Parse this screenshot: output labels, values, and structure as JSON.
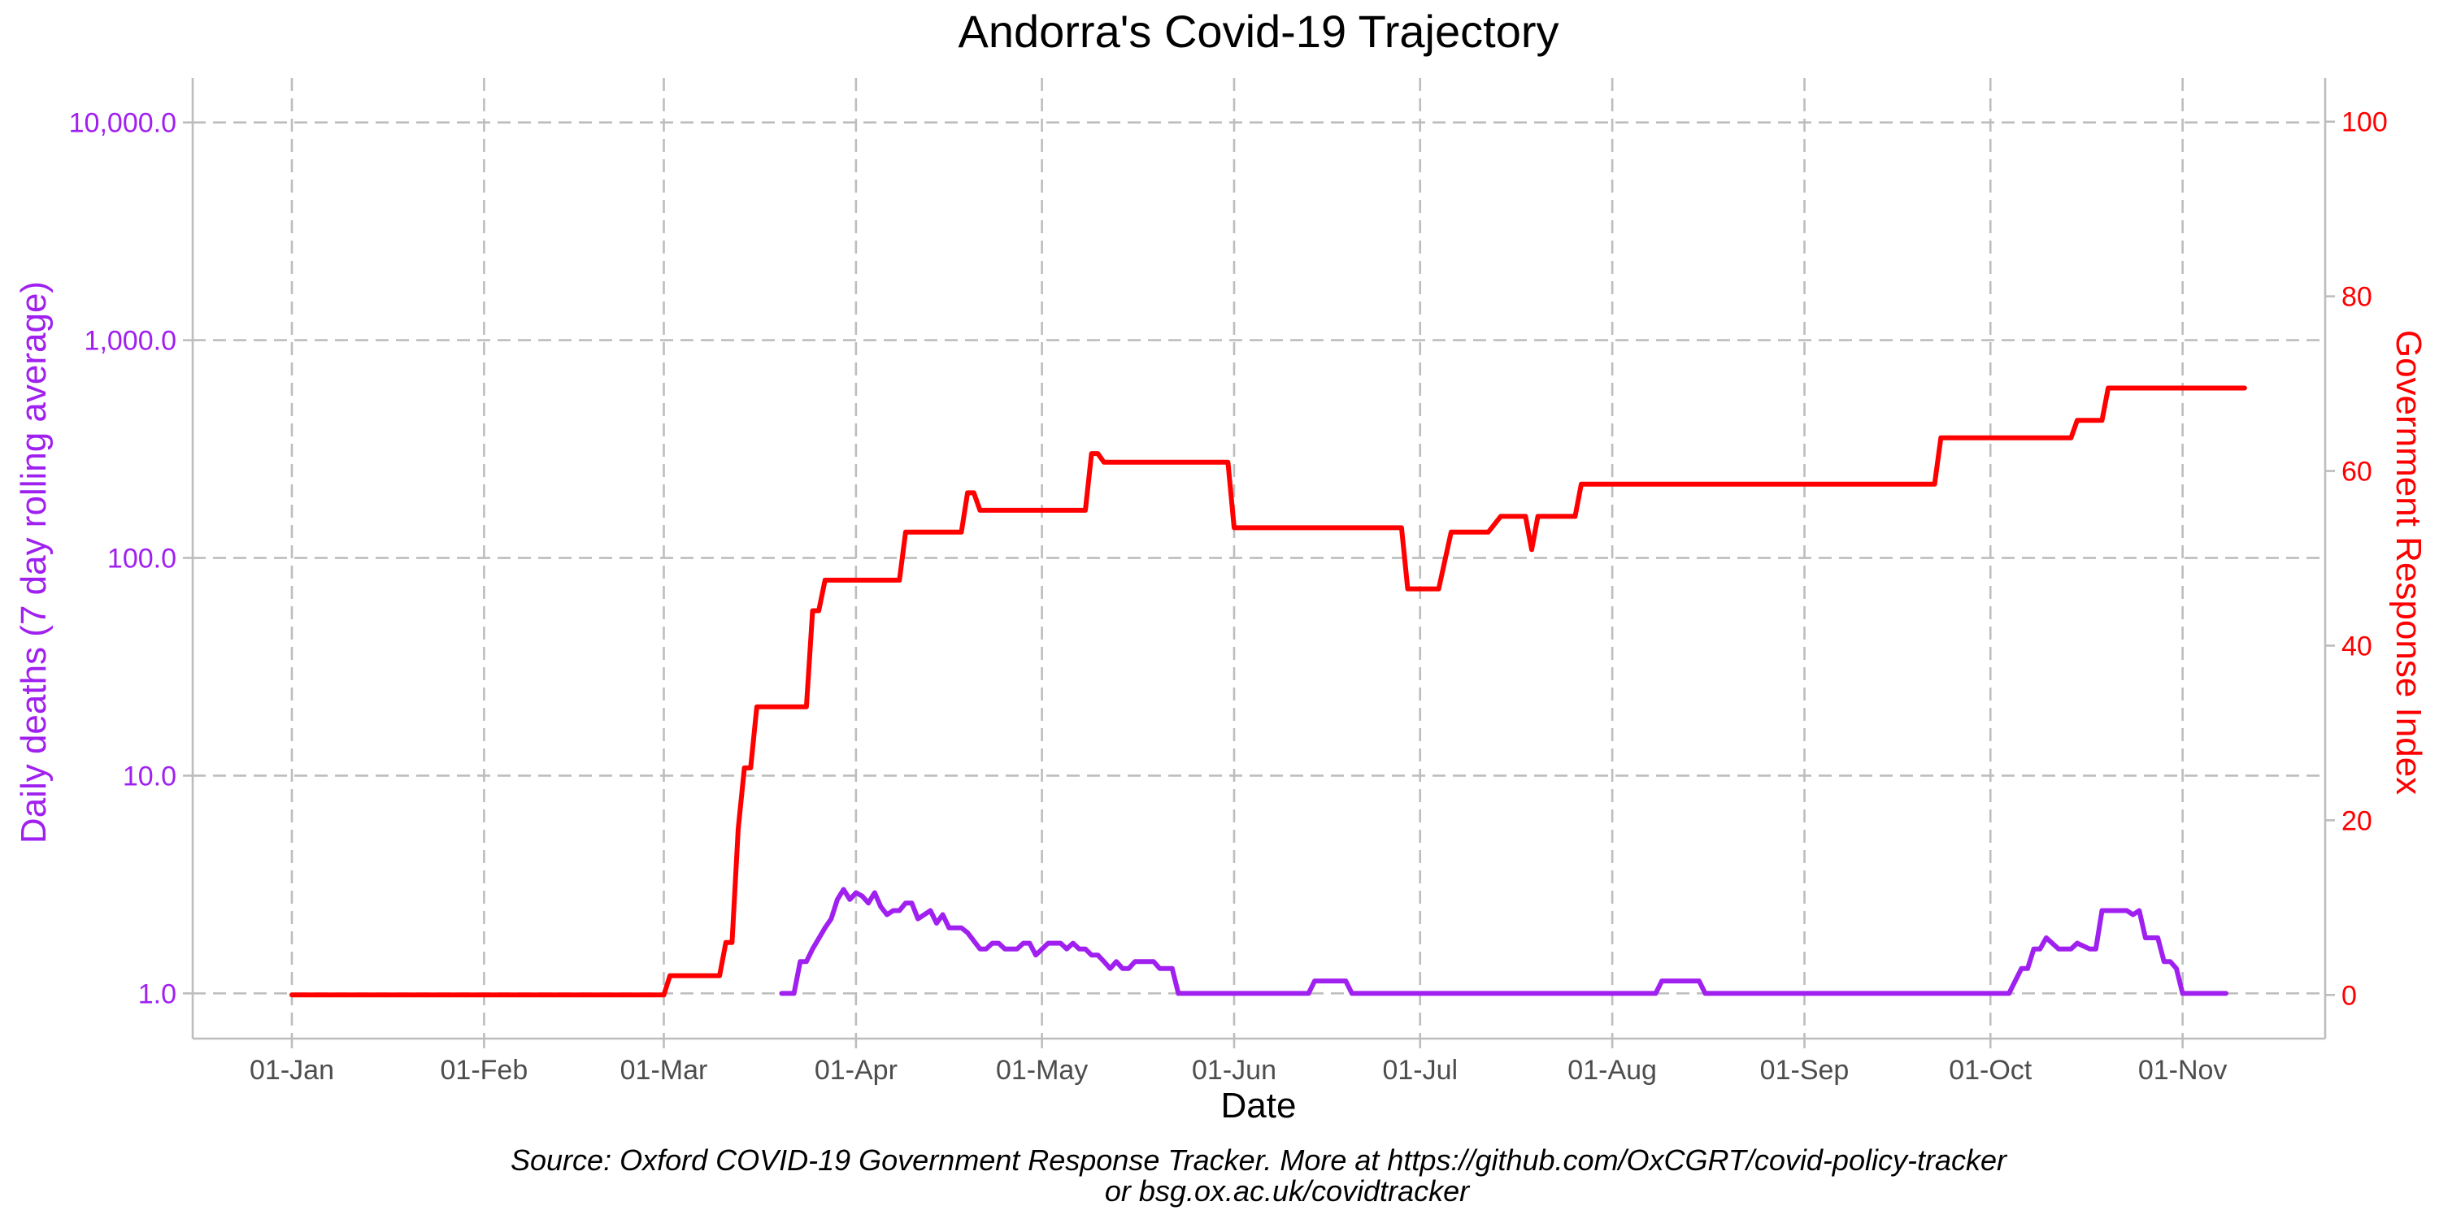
{
  "chart_data": {
    "type": "line",
    "title": "Andorra's Covid-19 Trajectory",
    "xlabel": "Date",
    "ylabel_left": "Daily deaths (7 day rolling average)",
    "ylabel_right": "Government Response Index",
    "caption_line1": "Source: Oxford COVID-19 Government Response Tracker. More at https://github.com/OxCGRT/covid-policy-tracker",
    "caption_line2": "or bsg.ox.ac.uk/covidtracker",
    "x_ticks": [
      "01-Jan",
      "01-Feb",
      "01-Mar",
      "01-Apr",
      "01-May",
      "01-Jun",
      "01-Jul",
      "01-Aug",
      "01-Sep",
      "01-Oct",
      "01-Nov"
    ],
    "x_tick_dates": [
      "2020-01-01",
      "2020-02-01",
      "2020-03-01",
      "2020-04-01",
      "2020-05-01",
      "2020-06-01",
      "2020-07-01",
      "2020-08-01",
      "2020-09-01",
      "2020-10-01",
      "2020-11-01"
    ],
    "xlim": [
      "2019-12-16",
      "2020-11-24"
    ],
    "y_left": {
      "scale": "log",
      "ylim": [
        0.62,
        16000
      ],
      "ticks": [
        1,
        10,
        100,
        1000,
        10000
      ],
      "tick_labels": [
        "1.0",
        "10.0",
        "100.0",
        "1,000.0",
        "10,000.0"
      ],
      "color": "#a020f0"
    },
    "y_right": {
      "scale": "linear",
      "ylim": [
        -5,
        105
      ],
      "ticks": [
        0,
        20,
        40,
        60,
        80,
        100
      ],
      "tick_labels": [
        "0",
        "20",
        "40",
        "60",
        "80",
        "100"
      ],
      "color": "#ff0000"
    },
    "grid": true,
    "series": [
      {
        "name": "Daily deaths (7 day rolling average)",
        "axis": "left",
        "color": "#a020f0",
        "points": [
          [
            "2020-03-20",
            1.0
          ],
          [
            "2020-03-22",
            1.0
          ],
          [
            "2020-03-23",
            1.4
          ],
          [
            "2020-03-24",
            1.4
          ],
          [
            "2020-03-25",
            1.6
          ],
          [
            "2020-03-27",
            2.0
          ],
          [
            "2020-03-28",
            2.2
          ],
          [
            "2020-03-29",
            2.7
          ],
          [
            "2020-03-30",
            3.0
          ],
          [
            "2020-03-31",
            2.7
          ],
          [
            "2020-04-01",
            2.9
          ],
          [
            "2020-04-02",
            2.8
          ],
          [
            "2020-04-03",
            2.6
          ],
          [
            "2020-04-04",
            2.9
          ],
          [
            "2020-04-05",
            2.5
          ],
          [
            "2020-04-06",
            2.3
          ],
          [
            "2020-04-07",
            2.4
          ],
          [
            "2020-04-08",
            2.4
          ],
          [
            "2020-04-09",
            2.6
          ],
          [
            "2020-04-10",
            2.6
          ],
          [
            "2020-04-11",
            2.2
          ],
          [
            "2020-04-13",
            2.4
          ],
          [
            "2020-04-14",
            2.1
          ],
          [
            "2020-04-15",
            2.3
          ],
          [
            "2020-04-16",
            2.0
          ],
          [
            "2020-04-17",
            2.0
          ],
          [
            "2020-04-18",
            2.0
          ],
          [
            "2020-04-19",
            1.9
          ],
          [
            "2020-04-21",
            1.6
          ],
          [
            "2020-04-22",
            1.6
          ],
          [
            "2020-04-23",
            1.7
          ],
          [
            "2020-04-24",
            1.7
          ],
          [
            "2020-04-25",
            1.6
          ],
          [
            "2020-04-27",
            1.6
          ],
          [
            "2020-04-28",
            1.7
          ],
          [
            "2020-04-29",
            1.7
          ],
          [
            "2020-04-30",
            1.5
          ],
          [
            "2020-05-02",
            1.7
          ],
          [
            "2020-05-04",
            1.7
          ],
          [
            "2020-05-05",
            1.6
          ],
          [
            "2020-05-06",
            1.7
          ],
          [
            "2020-05-07",
            1.6
          ],
          [
            "2020-05-08",
            1.6
          ],
          [
            "2020-05-09",
            1.5
          ],
          [
            "2020-05-10",
            1.5
          ],
          [
            "2020-05-11",
            1.4
          ],
          [
            "2020-05-12",
            1.3
          ],
          [
            "2020-05-13",
            1.4
          ],
          [
            "2020-05-14",
            1.3
          ],
          [
            "2020-05-15",
            1.3
          ],
          [
            "2020-05-16",
            1.4
          ],
          [
            "2020-05-19",
            1.4
          ],
          [
            "2020-05-20",
            1.3
          ],
          [
            "2020-05-22",
            1.3
          ],
          [
            "2020-05-23",
            1.0
          ],
          [
            "2020-06-13",
            1.0
          ],
          [
            "2020-06-14",
            1.14
          ],
          [
            "2020-06-19",
            1.14
          ],
          [
            "2020-06-20",
            1.0
          ],
          [
            "2020-08-08",
            1.0
          ],
          [
            "2020-08-09",
            1.14
          ],
          [
            "2020-08-15",
            1.14
          ],
          [
            "2020-08-16",
            1.0
          ],
          [
            "2020-10-04",
            1.0
          ],
          [
            "2020-10-06",
            1.3
          ],
          [
            "2020-10-07",
            1.3
          ],
          [
            "2020-10-08",
            1.6
          ],
          [
            "2020-10-09",
            1.6
          ],
          [
            "2020-10-10",
            1.8
          ],
          [
            "2020-10-12",
            1.6
          ],
          [
            "2020-10-13",
            1.6
          ],
          [
            "2020-10-14",
            1.6
          ],
          [
            "2020-10-15",
            1.7
          ],
          [
            "2020-10-17",
            1.6
          ],
          [
            "2020-10-18",
            1.6
          ],
          [
            "2020-10-19",
            2.4
          ],
          [
            "2020-10-23",
            2.4
          ],
          [
            "2020-10-24",
            2.3
          ],
          [
            "2020-10-25",
            2.4
          ],
          [
            "2020-10-26",
            1.8
          ],
          [
            "2020-10-28",
            1.8
          ],
          [
            "2020-10-29",
            1.4
          ],
          [
            "2020-10-30",
            1.4
          ],
          [
            "2020-10-31",
            1.3
          ],
          [
            "2020-11-01",
            1.0
          ],
          [
            "2020-11-08",
            1.0
          ]
        ]
      },
      {
        "name": "Government Response Index",
        "axis": "right",
        "color": "#ff0000",
        "points": [
          [
            "2020-01-01",
            0
          ],
          [
            "2020-03-01",
            0
          ],
          [
            "2020-03-02",
            2.2
          ],
          [
            "2020-03-10",
            2.2
          ],
          [
            "2020-03-11",
            6
          ],
          [
            "2020-03-12",
            6
          ],
          [
            "2020-03-13",
            19
          ],
          [
            "2020-03-14",
            26
          ],
          [
            "2020-03-15",
            26
          ],
          [
            "2020-03-16",
            33
          ],
          [
            "2020-03-24",
            33
          ],
          [
            "2020-03-25",
            44
          ],
          [
            "2020-03-26",
            44
          ],
          [
            "2020-03-27",
            47.5
          ],
          [
            "2020-04-08",
            47.5
          ],
          [
            "2020-04-09",
            53
          ],
          [
            "2020-04-18",
            53
          ],
          [
            "2020-04-19",
            57.5
          ],
          [
            "2020-04-20",
            57.5
          ],
          [
            "2020-04-21",
            55.5
          ],
          [
            "2020-05-08",
            55.5
          ],
          [
            "2020-05-09",
            62
          ],
          [
            "2020-05-10",
            62
          ],
          [
            "2020-05-11",
            61
          ],
          [
            "2020-05-31",
            61
          ],
          [
            "2020-06-01",
            53.5
          ],
          [
            "2020-06-28",
            53.5
          ],
          [
            "2020-06-29",
            46.5
          ],
          [
            "2020-07-04",
            46.5
          ],
          [
            "2020-07-06",
            53
          ],
          [
            "2020-07-12",
            53
          ],
          [
            "2020-07-14",
            54.8
          ],
          [
            "2020-07-18",
            54.8
          ],
          [
            "2020-07-19",
            51
          ],
          [
            "2020-07-20",
            54.8
          ],
          [
            "2020-07-26",
            54.8
          ],
          [
            "2020-07-27",
            58.5
          ],
          [
            "2020-09-22",
            58.5
          ],
          [
            "2020-09-23",
            63.8
          ],
          [
            "2020-10-14",
            63.8
          ],
          [
            "2020-10-15",
            65.8
          ],
          [
            "2020-10-19",
            65.8
          ],
          [
            "2020-10-20",
            69.5
          ],
          [
            "2020-11-11",
            69.5
          ]
        ]
      }
    ]
  }
}
